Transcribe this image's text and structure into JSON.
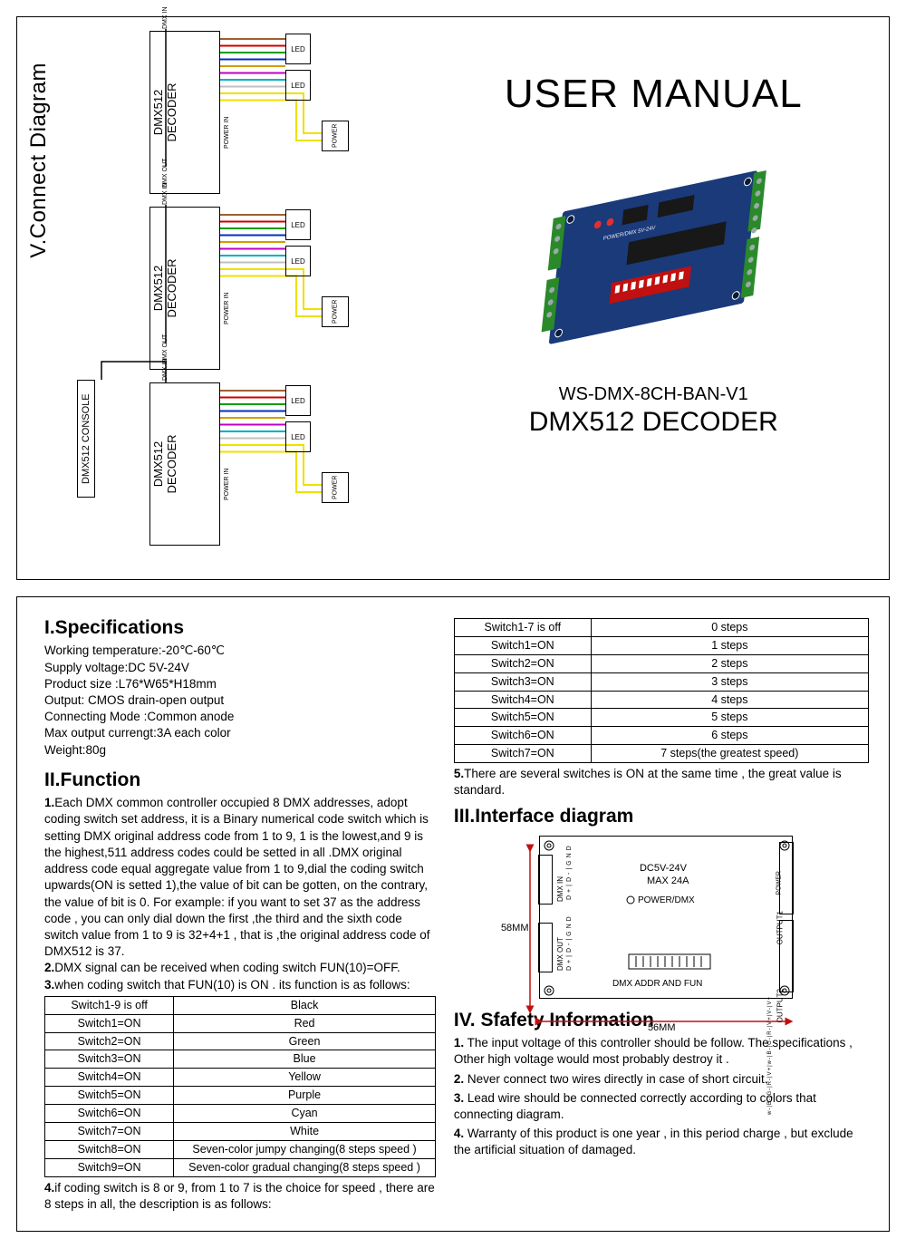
{
  "top": {
    "connect_title": "V.Connect Diagram",
    "console_label": "DMX512 CONSOLE",
    "decoder_label_1": "DMX512",
    "decoder_label_2": "DECODER",
    "port_dmx_in": "DMX IN",
    "port_dmx_out": "DMX OUT",
    "port_power_in": "POWER IN",
    "led_label": "LED",
    "power_label": "POWER",
    "wire_colors": [
      "#a06030",
      "#d00000",
      "#00a000",
      "#0030c0",
      "#d0a000",
      "#c000c0",
      "#00b0c0",
      "#c0c0c0",
      "#f0e000",
      "#f0e000"
    ],
    "manual_title": "USER MANUAL",
    "model": "WS-DMX-8CH-BAN-V1",
    "product": "DMX512 DECODER",
    "pcb": {
      "board_color": "#1a3a7a",
      "silk_color": "#e8e8f0",
      "connector_color": "#2a8a2a",
      "dip_color": "#c01010",
      "chip_color": "#181818"
    }
  },
  "spec": {
    "title": "I.Specifications",
    "lines": [
      "Working temperature:-20℃-60℃",
      "Supply voltage:DC 5V-24V",
      "Product size :L76*W65*H18mm",
      "Output: CMOS drain-open output",
      "Connecting Mode :Common anode",
      "Max output currengt:3A  each color",
      "Weight:80g"
    ]
  },
  "func": {
    "title": "II.Function",
    "p1": "Each DMX common controller occupied 8 DMX addresses, adopt coding switch set address, it is a Binary numerical code switch which is setting DMX original address code from 1 to 9, 1 is the lowest,and 9 is the highest,511 address codes  could be setted  in all .DMX original address code equal aggregate value from 1 to 9,dial the coding switch upwards(ON is setted 1),the value of bit can be  gotten, on the contrary, the value of bit is 0. For example: if you want to set 37 as the address code , you can only dial down the first ,the third and the  sixth code switch value from 1 to 9 is 32+4+1 , that is ,the original address  code of DMX512 is 37.",
    "p2": "DMX signal can be received when coding switch FUN(10)=OFF.",
    "p3": "when coding switch that FUN(10) is ON . its function is as follows:",
    "table1": [
      [
        "Switch1-9 is off",
        "Black"
      ],
      [
        "Switch1=ON",
        "Red"
      ],
      [
        "Switch2=ON",
        "Green"
      ],
      [
        "Switch3=ON",
        "Blue"
      ],
      [
        "Switch4=ON",
        "Yellow"
      ],
      [
        "Switch5=ON",
        "Purple"
      ],
      [
        "Switch6=ON",
        "Cyan"
      ],
      [
        "Switch7=ON",
        "White"
      ],
      [
        "Switch8=ON",
        "Seven-color jumpy changing(8 steps speed )"
      ],
      [
        "Switch9=ON",
        "Seven-color gradual changing(8 steps speed )"
      ]
    ],
    "p4": "if coding switch is 8 or 9,  from 1 to 7 is the choice for speed , there are 8 steps in all, the description is as follows:",
    "table2": [
      [
        "Switch1-7 is off",
        "0 steps"
      ],
      [
        "Switch1=ON",
        "1 steps"
      ],
      [
        "Switch2=ON",
        "2 steps"
      ],
      [
        "Switch3=ON",
        "3 steps"
      ],
      [
        "Switch4=ON",
        "4 steps"
      ],
      [
        "Switch5=ON",
        "5 steps"
      ],
      [
        "Switch6=ON",
        "6 steps"
      ],
      [
        "Switch7=ON",
        "7 steps(the greatest speed)"
      ]
    ],
    "p5": "There are several switches is ON at the same time , the great value is standard."
  },
  "iface": {
    "title": "III.Interface diagram",
    "dc_label": "DC5V-24V",
    "max_label": "MAX 24A",
    "power_dmx": "POWER/DMX",
    "addr_label": "DMX ADDR AND FUN",
    "dmx_in": "DMX IN",
    "dmx_out": "DMX OUT",
    "output1": "OUTPUT1",
    "output2": "OUTPUT2",
    "power_side": "POWER",
    "pins_dmx": "D+|D-|GND",
    "pins_out": "w-|B-|G-|R-|V+|w-|B-|G-|R-|V+|V-|V+",
    "dim_h": "58MM",
    "dim_w": "56MM",
    "arrow_color": "#c01010"
  },
  "safety": {
    "title": "IV. Sfafety Information",
    "items": [
      "The input voltage of this controller should be follow. The specifications , Other high voltage would most probably destroy it .",
      "Never connect two wires directly in case of short circuit.",
      "Lead wire should be connected correctly according to colors that connecting diagram.",
      "Warranty of this product is one year , in this period charge , but exclude the artificial situation of damaged."
    ]
  }
}
